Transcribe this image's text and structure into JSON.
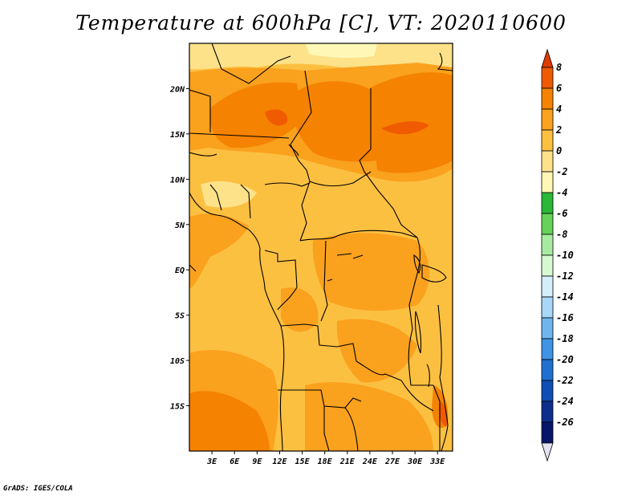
{
  "title": "Temperature at 600hPa [C], VT: 2020110600",
  "credit": "GrADS: IGES/COLA",
  "lat_labels": [
    {
      "label": "20N",
      "lat": 20
    },
    {
      "label": "15N",
      "lat": 15
    },
    {
      "label": "10N",
      "lat": 10
    },
    {
      "label": "5N",
      "lat": 5
    },
    {
      "label": "EQ",
      "lat": 0
    },
    {
      "label": "5S",
      "lat": -5
    },
    {
      "label": "10S",
      "lat": -10
    },
    {
      "label": "15S",
      "lat": -15
    }
  ],
  "lon_labels": [
    {
      "label": "3E",
      "lon": 3
    },
    {
      "label": "6E",
      "lon": 6
    },
    {
      "label": "9E",
      "lon": 9
    },
    {
      "label": "12E",
      "lon": 12
    },
    {
      "label": "15E",
      "lon": 15
    },
    {
      "label": "18E",
      "lon": 18
    },
    {
      "label": "21E",
      "lon": 21
    },
    {
      "label": "24E",
      "lon": 24
    },
    {
      "label": "27E",
      "lon": 27
    },
    {
      "label": "30E",
      "lon": 30
    },
    {
      "label": "33E",
      "lon": 33
    }
  ],
  "extent": {
    "lon": [
      0,
      35
    ],
    "lat": [
      -20,
      25
    ]
  },
  "colorbar": {
    "labels": [
      "8",
      "6",
      "4",
      "2",
      "0",
      "-2",
      "-4",
      "-6",
      "-8",
      "-10",
      "-12",
      "-14",
      "-16",
      "-18",
      "-20",
      "-22",
      "-24",
      "-26"
    ],
    "colors": [
      "#e03c00",
      "#f05a00",
      "#f58200",
      "#faa11e",
      "#fcc041",
      "#fde28a",
      "#fff7b5",
      "#2ab836",
      "#66d25a",
      "#a6eba1",
      "#d7f8d3",
      "#d4eefc",
      "#a8d7f7",
      "#6fb6ef",
      "#3f94e6",
      "#2070d2",
      "#0f4eb4",
      "#0a2f8c",
      "#081569",
      "#e2e2f3"
    ]
  }
}
